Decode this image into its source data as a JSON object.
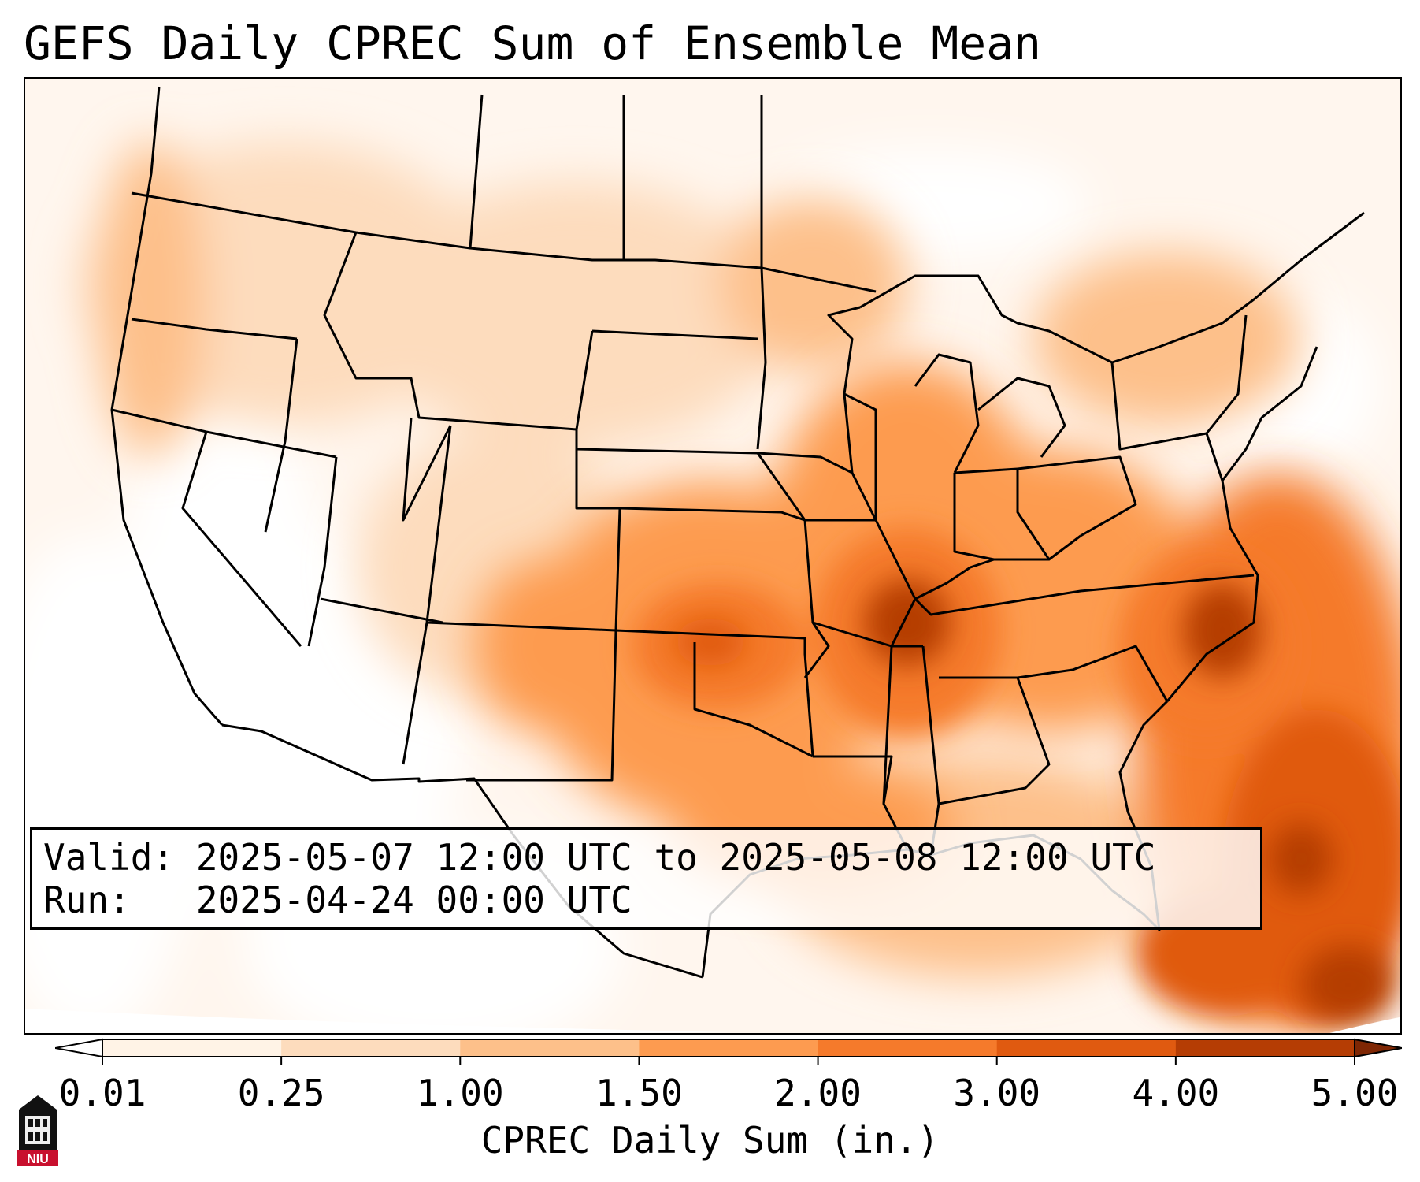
{
  "title": "GEFS Daily CPREC Sum of Ensemble Mean",
  "info": {
    "valid_line": "Valid: 2025-05-07 12:00 UTC to 2025-05-08 12:00 UTC",
    "run_line": "Run:   2025-04-24 00:00 UTC"
  },
  "colorbar": {
    "label": "CPREC Daily Sum (in.)",
    "ticks": [
      "0.01",
      "0.25",
      "1.00",
      "1.50",
      "2.00",
      "3.00",
      "4.00",
      "5.00"
    ],
    "colors": [
      "#fff3e6",
      "#fddcbd",
      "#fdc08a",
      "#fd9b50",
      "#f57a2b",
      "#e05a10",
      "#b53d04",
      "#7f2704"
    ],
    "under_color": "#ffffff",
    "over_color": "#7f2704"
  },
  "map": {
    "background_color": "#fff6ee",
    "boundary_color": "#000000"
  },
  "logo": {
    "text": "NIU",
    "colors": [
      "#c8102e",
      "#000000"
    ]
  }
}
